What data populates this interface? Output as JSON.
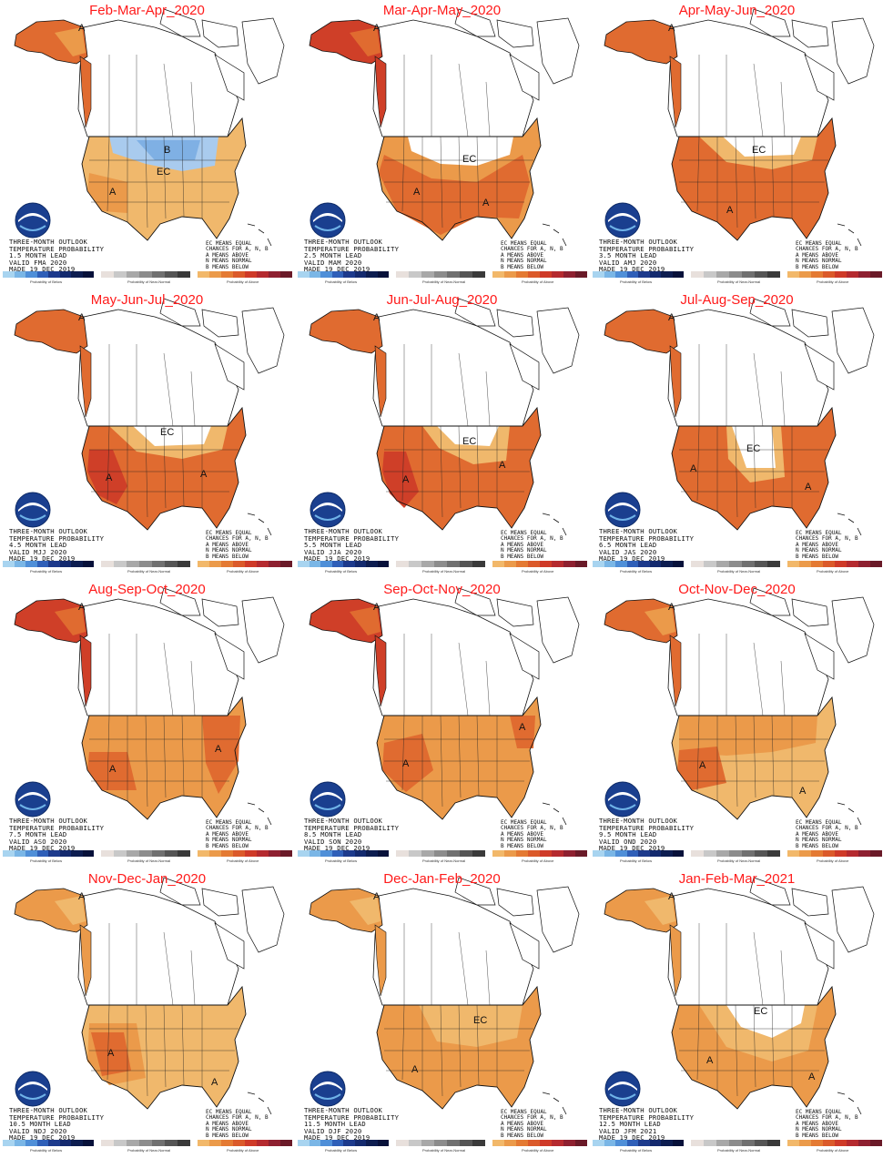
{
  "panels": [
    {
      "title": "Feb-Mar-Apr_2020",
      "lines": [
        "THREE-MONTH OUTLOOK",
        "TEMPERATURE PROBABILITY",
        "1.5 MONTH LEAD",
        "VALID FMA 2020",
        "MADE 19 DEC 2019"
      ],
      "style": "fma"
    },
    {
      "title": "Mar-Apr-May_2020",
      "lines": [
        "THREE-MONTH OUTLOOK",
        "TEMPERATURE PROBABILITY",
        "2.5 MONTH LEAD",
        "VALID MAM 2020",
        "MADE 19 DEC 2019"
      ],
      "style": "mam"
    },
    {
      "title": "Apr-May-Jun_2020",
      "lines": [
        "THREE-MONTH OUTLOOK",
        "TEMPERATURE PROBABILITY",
        "3.5 MONTH LEAD",
        "VALID AMJ 2020",
        "MADE 19 DEC 2019"
      ],
      "style": "amj"
    },
    {
      "title": "May-Jun-Jul_2020",
      "lines": [
        "THREE-MONTH OUTLOOK",
        "TEMPERATURE PROBABILITY",
        "4.5 MONTH LEAD",
        "VALID MJJ 2020",
        "MADE 19 DEC 2019"
      ],
      "style": "mjj"
    },
    {
      "title": "Jun-Jul-Aug_2020",
      "lines": [
        "THREE-MONTH OUTLOOK",
        "TEMPERATURE PROBABILITY",
        "5.5 MONTH LEAD",
        "VALID JJA 2020",
        "MADE 19 DEC 2019"
      ],
      "style": "jja"
    },
    {
      "title": "Jul-Aug-Sep_2020",
      "lines": [
        "THREE-MONTH OUTLOOK",
        "TEMPERATURE PROBABILITY",
        "6.5 MONTH LEAD",
        "VALID JAS 2020",
        "MADE 19 DEC 2019"
      ],
      "style": "jas"
    },
    {
      "title": "Aug-Sep-Oct_2020",
      "lines": [
        "THREE-MONTH OUTLOOK",
        "TEMPERATURE PROBABILITY",
        "7.5 MONTH LEAD",
        "VALID ASO 2020",
        "MADE 19 DEC 2019"
      ],
      "style": "aso"
    },
    {
      "title": "Sep-Oct-Nov_2020",
      "lines": [
        "THREE-MONTH OUTLOOK",
        "TEMPERATURE PROBABILITY",
        "8.5 MONTH LEAD",
        "VALID SON 2020",
        "MADE 19 DEC 2019"
      ],
      "style": "son"
    },
    {
      "title": "Oct-Nov-Dec_2020",
      "lines": [
        "THREE-MONTH OUTLOOK",
        "TEMPERATURE PROBABILITY",
        "9.5 MONTH LEAD",
        "VALID OND 2020",
        "MADE 19 DEC 2019"
      ],
      "style": "ond"
    },
    {
      "title": "Nov-Dec-Jan_2020",
      "lines": [
        "THREE-MONTH OUTLOOK",
        "TEMPERATURE PROBABILITY",
        "10.5 MONTH LEAD",
        "VALID NDJ 2020",
        "MADE 19 DEC 2019"
      ],
      "style": "ndj"
    },
    {
      "title": "Dec-Jan-Feb_2020",
      "lines": [
        "THREE-MONTH OUTLOOK",
        "TEMPERATURE PROBABILITY",
        "11.5 MONTH LEAD",
        "VALID DJF 2020",
        "MADE 19 DEC 2019"
      ],
      "style": "djf"
    },
    {
      "title": "Jan-Feb-Mar_2021",
      "lines": [
        "THREE-MONTH OUTLOOK",
        "TEMPERATURE PROBABILITY",
        "12.5 MONTH LEAD",
        "VALID JFM 2021",
        "MADE 19 DEC 2019"
      ],
      "style": "jfm"
    }
  ],
  "key_lines": [
    "EC MEANS EQUAL",
    "CHANCES FOR A, N, B",
    "A MEANS ABOVE",
    "N MEANS NORMAL",
    "B MEANS BELOW"
  ],
  "legend": {
    "below_caption": "Probability of Below",
    "normal_caption": "Probability of Near-Normal",
    "above_caption": "Probability of Above",
    "below_colors": [
      "#a8d4f0",
      "#7ab6e6",
      "#4f8fd8",
      "#2f5fb8",
      "#1d3a8c",
      "#142a6e",
      "#0d1d50",
      "#07113a"
    ],
    "normal_colors": [
      "#e8e0dc",
      "#c8c8c8",
      "#a8a8a8",
      "#8c8c8c",
      "#707070",
      "#555555",
      "#3a3a3a"
    ],
    "above_colors": [
      "#f2b86a",
      "#eb9a4a",
      "#e47a33",
      "#db5a2a",
      "#cf3a28",
      "#b52a2f",
      "#8e2030",
      "#6a1a28"
    ]
  },
  "colors": {
    "a33": "#f0b86c",
    "a40": "#eb9a4a",
    "a50": "#e06b30",
    "a60": "#cf3f28",
    "a70": "#b52a30",
    "b33": "#a9cbee",
    "b40": "#7fb0e4"
  },
  "labels": {
    "above": "A",
    "below": "B",
    "ec": "EC"
  }
}
